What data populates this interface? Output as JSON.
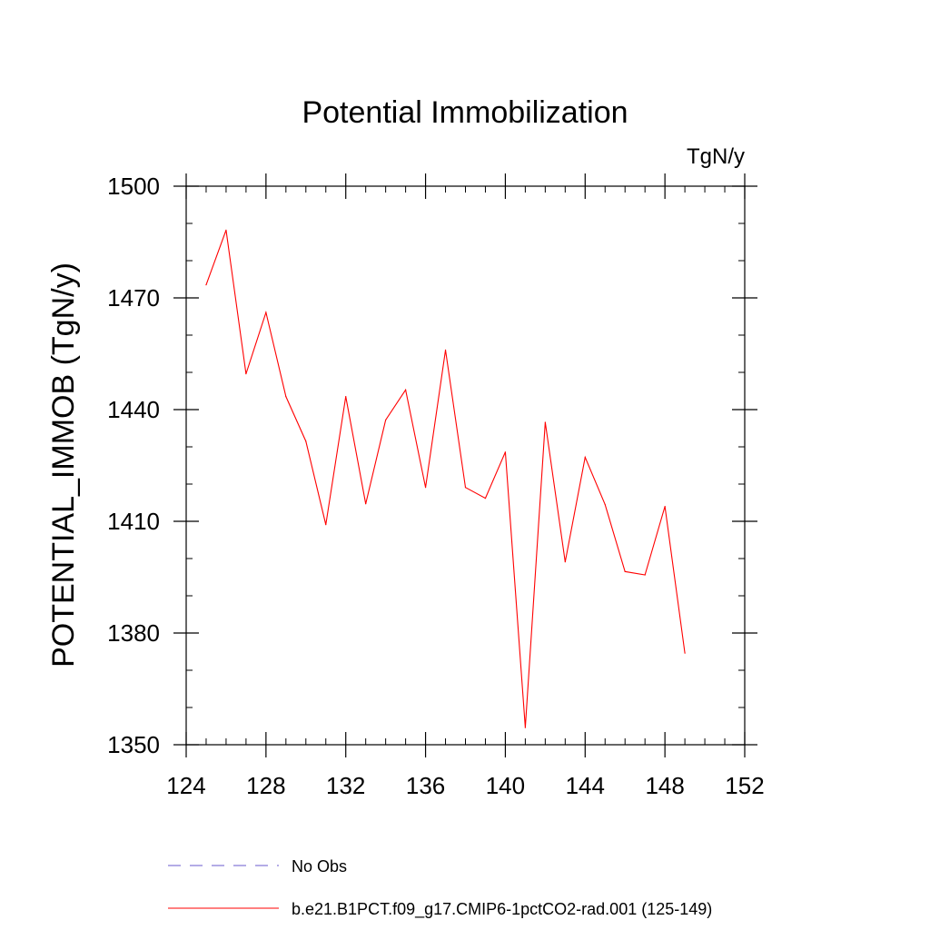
{
  "chart_data": {
    "type": "line",
    "title": "Potential Immobilization",
    "units_label": "TgN/y",
    "ylabel": "POTENTIAL_IMMOB  (TgN/y)",
    "xlabel": "",
    "xlim": [
      124,
      152
    ],
    "ylim": [
      1350,
      1500
    ],
    "x_ticks": [
      124,
      128,
      132,
      136,
      140,
      144,
      148,
      152
    ],
    "y_ticks": [
      1350,
      1380,
      1410,
      1440,
      1470,
      1500
    ],
    "x_minor_step": 1,
    "y_minor_step": 10,
    "grid": false,
    "legend_position": "bottom",
    "series": [
      {
        "name": "b.e21.B1PCT.f09_g17.CMIP6-1pctCO2-rad.001 (125-149)",
        "color": "#ff0000",
        "style": "solid",
        "x": [
          125,
          126,
          127,
          128,
          129,
          130,
          131,
          132,
          133,
          134,
          135,
          136,
          137,
          138,
          139,
          140,
          141,
          142,
          143,
          144,
          145,
          146,
          147,
          148,
          149
        ],
        "values": [
          1473.5,
          1488.2,
          1449.6,
          1466.1,
          1443.5,
          1431.5,
          1409.1,
          1443.5,
          1414.7,
          1437.2,
          1445.3,
          1419.1,
          1456.0,
          1419.1,
          1416.2,
          1428.6,
          1354.6,
          1436.6,
          1399.1,
          1427.2,
          1414.5,
          1396.5,
          1395.6,
          1414.0,
          1374.6
        ]
      }
    ],
    "legend": [
      {
        "label": "No Obs",
        "color": "#6a5acd",
        "style": "dashed"
      },
      {
        "label": "b.e21.B1PCT.f09_g17.CMIP6-1pctCO2-rad.001 (125-149)",
        "color": "#ff0000",
        "style": "solid"
      }
    ]
  }
}
